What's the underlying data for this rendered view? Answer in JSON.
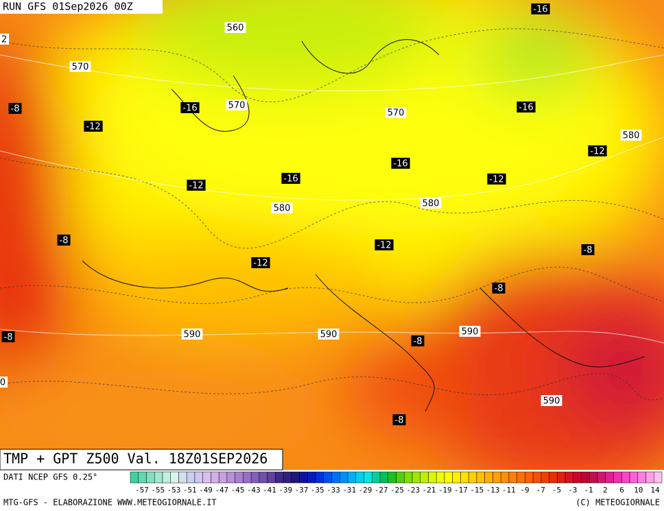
{
  "header": {
    "run": "RUN GFS 01Sep2026 00Z"
  },
  "map": {
    "geopotential_labels": [
      "2",
      560,
      570,
      570,
      570,
      580,
      580,
      580,
      590,
      590,
      590,
      590,
      "0"
    ],
    "temperature_labels": [
      -16,
      -16,
      -16,
      -16,
      -16,
      -12,
      -12,
      -12,
      -12,
      -12,
      -12,
      -8,
      -8,
      -8,
      -8,
      -8,
      -8,
      -8
    ]
  },
  "footer": {
    "title": "TMP + GPT Z500 Val. 18Z01SEP2026",
    "source": "DATI NCEP GFS 0.25°",
    "credit_left": "MTG-GFS - ELABORAZIONE WWW.METEOGIORNALE.IT",
    "credit_right": "(C) METEOGIORNALE"
  },
  "colorbar": {
    "labels": [
      -57,
      -55,
      -53,
      -51,
      -49,
      -47,
      -45,
      -43,
      -41,
      -39,
      -37,
      -35,
      -33,
      -31,
      -29,
      -27,
      -25,
      -23,
      -21,
      -19,
      -17,
      -15,
      -13,
      -11,
      -9,
      -7,
      -5,
      -3,
      -1,
      2,
      6,
      10,
      14
    ],
    "colors": [
      "#40d0a0",
      "#60d8b0",
      "#80e0c0",
      "#a0e8d0",
      "#c0f0e0",
      "#d8f4ec",
      "#d0e0f0",
      "#c8d0f0",
      "#d0c8f0",
      "#d8c0f0",
      "#d0b0e8",
      "#c8a0e0",
      "#b890d8",
      "#a880d0",
      "#9870c8",
      "#8060b8",
      "#7050a8",
      "#604098",
      "#402888",
      "#302080",
      "#201878",
      "#1010a0",
      "#0818c0",
      "#0030e0",
      "#0050f0",
      "#0070f8",
      "#0090f8",
      "#00b0f8",
      "#00d0f0",
      "#00e8e0",
      "#00d0a0",
      "#00c060",
      "#20c020",
      "#50d010",
      "#80e000",
      "#a0e800",
      "#c0f000",
      "#d8f800",
      "#f0ff00",
      "#ffff00",
      "#fff000",
      "#ffe000",
      "#ffd000",
      "#ffc000",
      "#ffb000",
      "#ffa000",
      "#ff9000",
      "#ff8000",
      "#ff7000",
      "#ff6000",
      "#f85000",
      "#f04000",
      "#e83000",
      "#e02010",
      "#d81020",
      "#c80828",
      "#b80830",
      "#c01050",
      "#d01870",
      "#e02090",
      "#f030b0",
      "#f848c8",
      "#ff60d8",
      "#ff80e0",
      "#ffa0e8",
      "#ffc0f0"
    ]
  }
}
